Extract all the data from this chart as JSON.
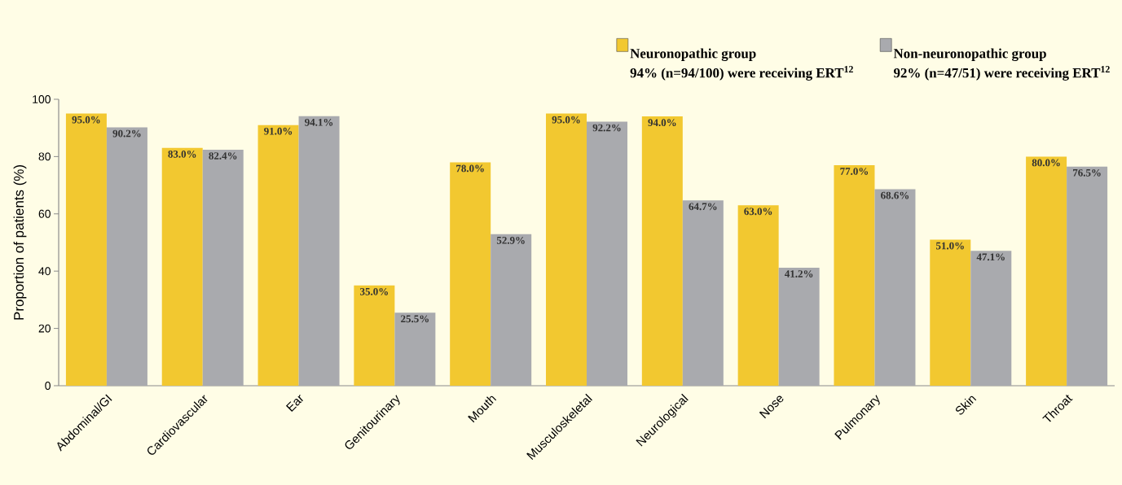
{
  "chart_data": {
    "type": "bar",
    "ylabel": "Proportion of patients (%)",
    "categories": [
      "Abdominal/GI",
      "Cardiovascular",
      "Ear",
      "Genitourinary",
      "Mouth",
      "Musculoskeletal",
      "Neurological",
      "Nose",
      "Pulmonary",
      "Skin",
      "Throat"
    ],
    "series": [
      {
        "name": "Neuronopathic group",
        "color": "#f2c830",
        "values": [
          95.0,
          83.0,
          91.0,
          35.0,
          78.0,
          95.0,
          94.0,
          63.0,
          77.0,
          51.0,
          80.0
        ],
        "value_labels": [
          "95.0%",
          "83.0%",
          "91.0%",
          "35.0%",
          "78.0%",
          "95.0%",
          "94.0%",
          "63.0%",
          "77.0%",
          "51.0%",
          "80.0%"
        ]
      },
      {
        "name": "Non-neuronopathic group",
        "color": "#a9aaae",
        "values": [
          90.2,
          82.4,
          94.1,
          25.5,
          52.9,
          92.2,
          64.7,
          41.2,
          68.6,
          47.1,
          76.5
        ],
        "value_labels": [
          "90.2%",
          "82.4%",
          "94.1%",
          "25.5%",
          "52.9%",
          "92.2%",
          "64.7%",
          "41.2%",
          "68.6%",
          "47.1%",
          "76.5%"
        ]
      }
    ],
    "annotations": [
      "94% (n=94/100) were receiving ERT$^{12}$",
      "92% (n=47/51) were receiving ERT$^{12}$"
    ],
    "ylim": [
      0,
      100
    ],
    "yticks": [
      0,
      20,
      40,
      60,
      80,
      100
    ],
    "legend": "top right"
  }
}
